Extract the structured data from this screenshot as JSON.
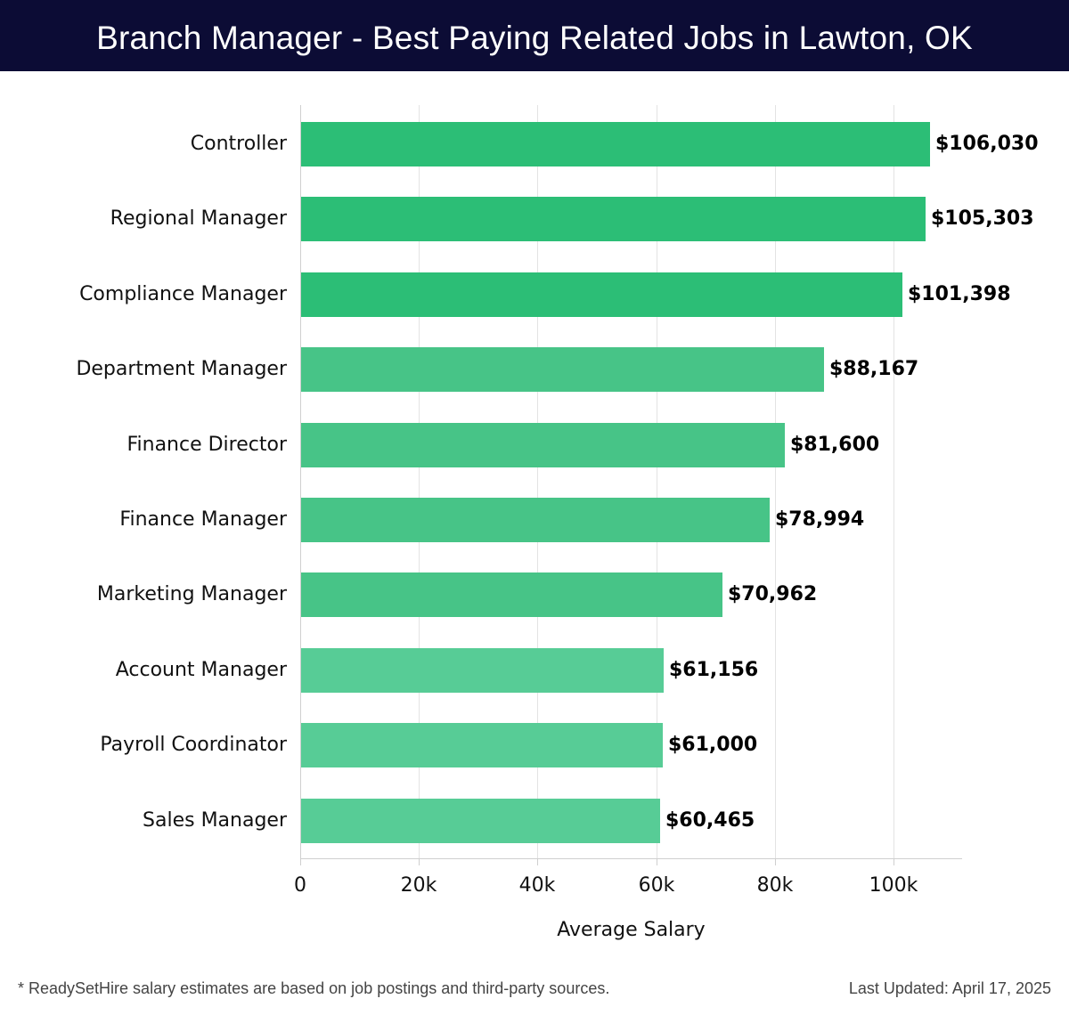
{
  "header": {
    "title": "Branch Manager - Best Paying Related Jobs in Lawton, OK"
  },
  "colors": {
    "header_bg": "#0c0c35",
    "bar_dark": "#2cbe76",
    "bar_mid": "#47c487",
    "bar_light": "#57cc96"
  },
  "chart_data": {
    "type": "bar",
    "orientation": "horizontal",
    "title": "Branch Manager - Best Paying Related Jobs in Lawton, OK",
    "xlabel": "Average Salary",
    "ylabel": "",
    "xlim": [
      0,
      111500
    ],
    "x_ticks": [
      0,
      20000,
      40000,
      60000,
      80000,
      100000
    ],
    "x_tick_labels": [
      "0",
      "20k",
      "40k",
      "60k",
      "80k",
      "100k"
    ],
    "grid": "vertical",
    "legend": null,
    "categories": [
      "Controller",
      "Regional Manager",
      "Compliance Manager",
      "Department Manager",
      "Finance Director",
      "Finance Manager",
      "Marketing Manager",
      "Account Manager",
      "Payroll Coordinator",
      "Sales Manager"
    ],
    "values": [
      106030,
      105303,
      101398,
      88167,
      81600,
      78994,
      70962,
      61156,
      61000,
      60465
    ],
    "value_labels": [
      "$106,030",
      "$105,303",
      "$101,398",
      "$88,167",
      "$81,600",
      "$78,994",
      "$70,962",
      "$61,156",
      "$61,000",
      "$60,465"
    ]
  },
  "axis": {
    "ticks": [
      "0",
      "20k",
      "40k",
      "60k",
      "80k",
      "100k"
    ],
    "xlabel": "Average Salary"
  },
  "footer": {
    "note": "* ReadySetHire salary estimates are based on job postings and third-party sources.",
    "updated": "Last Updated: April 17, 2025"
  }
}
